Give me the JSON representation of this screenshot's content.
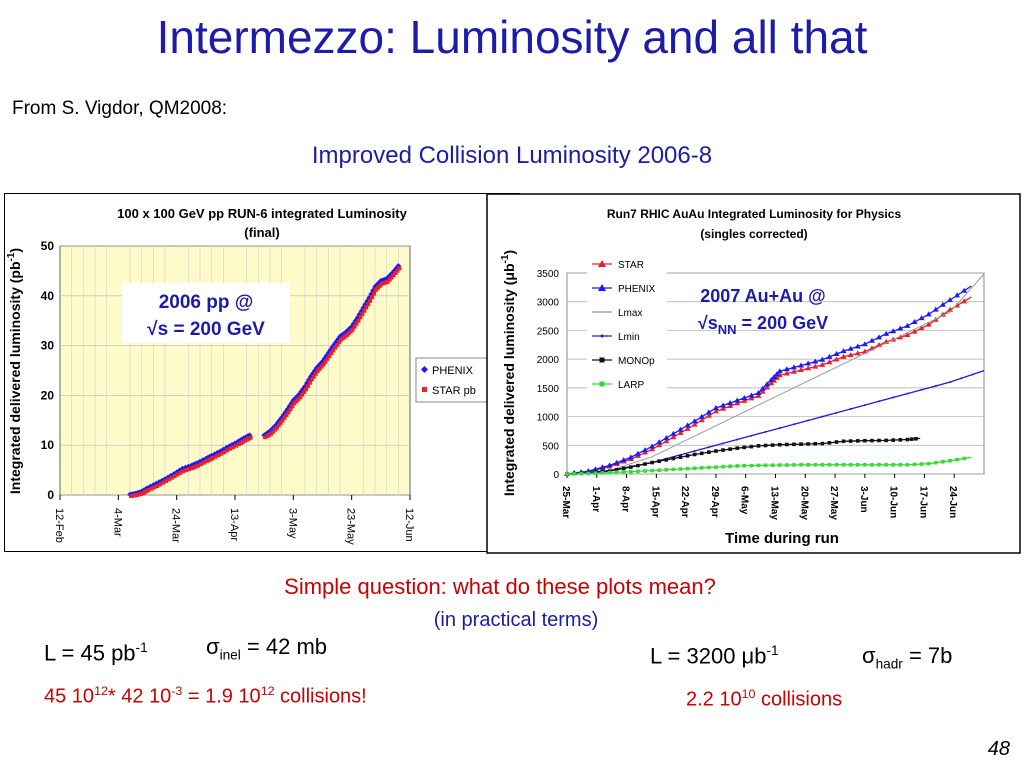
{
  "title": "Intermezzo: Luminosity and all that",
  "source": "From S. Vigdor, QM2008:",
  "subtitle": "Improved Collision Luminosity 2006-8",
  "colors": {
    "blue": "#1c1ca8",
    "red": "#cc0000",
    "phenix": "#1a1aff",
    "star": "#e8212a",
    "plot_bg_left": "#fdfbca"
  },
  "left_annotation": {
    "line1": "2006 pp @",
    "line2": "√s = 200 GeV"
  },
  "right_annotation": {
    "line1": "2007 Au+Au @",
    "line2_prefix": "√s",
    "line2_sub": "NN",
    "line2_suffix": " = 200 GeV"
  },
  "question": "Simple question: what do these plots mean?",
  "question_sub": "(in practical terms)",
  "left_formula": {
    "l": "L = 45 pb",
    "l_sup": "-1",
    "sigma": "σ",
    "sigma_sub": "inel",
    "sigma_val": " = 42 mb",
    "calc": [
      {
        "t": "45 10",
        "s": "12"
      },
      {
        "t": "* 42 10",
        "s": "-3"
      },
      {
        "t": " = 1.9 10",
        "s": "12"
      },
      {
        "t": " collisions!",
        "s": ""
      }
    ]
  },
  "right_formula": {
    "l_prefix": "L = 3200 ",
    "mu": "μ",
    "l_b": "b",
    "l_sup": "-1",
    "sigma": "σ",
    "sigma_sub": "hadr",
    "sigma_val": " = 7b",
    "calc_a": "2.2 10",
    "calc_sup": "10",
    "calc_b": " collisions"
  },
  "page_number": "48",
  "chart_data": [
    {
      "type": "scatter",
      "title": "100 x 100 GeV pp RUN-6 integrated  Luminosity",
      "title2": "(final)",
      "ylabel": "Integrated delivered luminosity (pb",
      "ylabel_sup": "-1",
      "ylabel_end": ")",
      "ylim": [
        0,
        50
      ],
      "yticks": [
        0,
        10,
        20,
        30,
        40,
        50
      ],
      "xticks": [
        "12-Feb",
        "4-Mar",
        "24-Mar",
        "13-Apr",
        "3-May",
        "23-May",
        "12-Jun"
      ],
      "x_unit": "days since 12-Feb",
      "xlim": [
        0,
        120
      ],
      "grid": true,
      "legend": "right",
      "series": [
        {
          "name": "PHENIX",
          "segments": [
            [
              [
                24,
                0.1
              ],
              [
                26,
                0.3
              ],
              [
                28,
                0.7
              ],
              [
                30,
                1.4
              ],
              [
                33,
                2.3
              ],
              [
                36,
                3.2
              ],
              [
                39,
                4.2
              ],
              [
                42,
                5.3
              ],
              [
                45,
                5.9
              ],
              [
                47,
                6.4
              ],
              [
                50,
                7.3
              ],
              [
                52,
                7.9
              ],
              [
                55,
                8.8
              ],
              [
                58,
                9.8
              ],
              [
                61,
                10.7
              ],
              [
                63,
                11.4
              ],
              [
                65,
                12.0
              ]
            ],
            [
              [
                70,
                12.0
              ],
              [
                72,
                12.8
              ],
              [
                74,
                14.0
              ],
              [
                76,
                15.5
              ],
              [
                78,
                17.2
              ],
              [
                80,
                19.0
              ],
              [
                82,
                20.2
              ],
              [
                84,
                21.8
              ],
              [
                86,
                23.8
              ],
              [
                88,
                25.5
              ],
              [
                90,
                26.8
              ],
              [
                92,
                28.5
              ],
              [
                94,
                30.2
              ],
              [
                96,
                31.8
              ],
              [
                98,
                32.7
              ],
              [
                100,
                33.8
              ],
              [
                102,
                35.6
              ],
              [
                104,
                37.6
              ],
              [
                106,
                39.6
              ],
              [
                108,
                41.8
              ],
              [
                110,
                43.0
              ],
              [
                112,
                43.4
              ],
              [
                114,
                44.6
              ],
              [
                116,
                46.0
              ]
            ]
          ]
        },
        {
          "name": "STAR pb",
          "segments": [
            [
              [
                24,
                0.0
              ],
              [
                26,
                0.2
              ],
              [
                28,
                0.5
              ],
              [
                30,
                1.2
              ],
              [
                33,
                2.0
              ],
              [
                36,
                3.0
              ],
              [
                39,
                4.0
              ],
              [
                42,
                5.0
              ],
              [
                45,
                5.6
              ],
              [
                47,
                6.1
              ],
              [
                50,
                7.0
              ],
              [
                52,
                7.6
              ],
              [
                55,
                8.5
              ],
              [
                58,
                9.5
              ],
              [
                61,
                10.4
              ],
              [
                63,
                11.1
              ],
              [
                65,
                11.7
              ]
            ],
            [
              [
                70,
                11.8
              ],
              [
                72,
                12.5
              ],
              [
                74,
                13.7
              ],
              [
                76,
                15.2
              ],
              [
                78,
                16.8
              ],
              [
                80,
                18.6
              ],
              [
                82,
                19.8
              ],
              [
                84,
                21.4
              ],
              [
                86,
                23.4
              ],
              [
                88,
                25.1
              ],
              [
                90,
                26.4
              ],
              [
                92,
                28.1
              ],
              [
                94,
                29.8
              ],
              [
                96,
                31.4
              ],
              [
                98,
                32.3
              ],
              [
                100,
                33.4
              ],
              [
                102,
                35.2
              ],
              [
                104,
                37.2
              ],
              [
                106,
                39.2
              ],
              [
                108,
                41.4
              ],
              [
                110,
                42.6
              ],
              [
                112,
                43.0
              ],
              [
                114,
                44.3
              ],
              [
                116,
                45.7
              ]
            ]
          ]
        }
      ]
    },
    {
      "type": "line",
      "title": "Run7 RHIC AuAu   Integrated Luminosity for Physics",
      "title2": "(singles corrected)",
      "ylabel": "Integrated delivered luminosity (",
      "ylabel_mu": "μ",
      "ylabel_b": "b",
      "ylabel_sup": "-1",
      "ylabel_end": ")",
      "xlabel": "Time during run",
      "ylim": [
        0,
        3500
      ],
      "yticks": [
        0,
        500,
        1000,
        1500,
        2000,
        2500,
        3000,
        3500
      ],
      "xticks": [
        "25-Mar",
        "1-Apr",
        "8-Apr",
        "15-Apr",
        "22-Apr",
        "29-Apr",
        "6-May",
        "13-May",
        "20-May",
        "27-May",
        "3-Jun",
        "10-Jun",
        "17-Jun",
        "24-Jun"
      ],
      "x_unit": "days since 25-Mar",
      "xlim": [
        0,
        98
      ],
      "grid": true,
      "legend": "top-left",
      "series": [
        {
          "name": "STAR",
          "color": "#e8212a",
          "marker": "triangle",
          "x": [
            0,
            5,
            10,
            15,
            20,
            25,
            30,
            35,
            40,
            45,
            48,
            50,
            55,
            60,
            65,
            70,
            75,
            80,
            85,
            90,
            95
          ],
          "y": [
            0,
            40,
            130,
            260,
            430,
            640,
            860,
            1090,
            1230,
            1360,
            1580,
            1720,
            1810,
            1900,
            2040,
            2130,
            2300,
            2420,
            2600,
            2860,
            3080
          ]
        },
        {
          "name": "PHENIX",
          "color": "#1a1aff",
          "marker": "triangle",
          "x": [
            0,
            5,
            10,
            15,
            20,
            25,
            30,
            35,
            40,
            45,
            48,
            50,
            55,
            60,
            65,
            70,
            75,
            80,
            85,
            90,
            95
          ],
          "y": [
            0,
            50,
            150,
            290,
            480,
            700,
            920,
            1150,
            1280,
            1410,
            1640,
            1790,
            1890,
            1990,
            2140,
            2260,
            2440,
            2580,
            2780,
            3030,
            3270
          ]
        },
        {
          "name": "Lmax",
          "color": "#999999",
          "marker": "line",
          "x": [
            0,
            10,
            20,
            30,
            40,
            50,
            60,
            70,
            80,
            90,
            98
          ],
          "y": [
            0,
            60,
            300,
            660,
            1020,
            1380,
            1740,
            2100,
            2460,
            2820,
            3480
          ]
        },
        {
          "name": "Lmin",
          "color": "#1c1cd0",
          "marker": "dot",
          "x": [
            0,
            10,
            20,
            30,
            40,
            50,
            60,
            70,
            80,
            90,
            98
          ],
          "y": [
            0,
            60,
            200,
            400,
            600,
            800,
            1000,
            1200,
            1400,
            1600,
            1800
          ]
        },
        {
          "name": "MONOp",
          "color": "#111111",
          "marker": "square",
          "x": [
            0,
            5,
            10,
            15,
            20,
            25,
            30,
            35,
            40,
            45,
            50,
            55,
            60,
            65,
            70,
            75,
            80,
            83
          ],
          "y": [
            0,
            20,
            50,
            120,
            200,
            270,
            340,
            400,
            450,
            490,
            510,
            520,
            530,
            570,
            580,
            585,
            600,
            620
          ]
        },
        {
          "name": "LARP",
          "color": "#33dd33",
          "marker": "square",
          "x": [
            0,
            5,
            10,
            15,
            20,
            25,
            30,
            35,
            40,
            45,
            50,
            55,
            60,
            65,
            70,
            75,
            80,
            85,
            90,
            95
          ],
          "y": [
            0,
            10,
            25,
            40,
            60,
            80,
            100,
            120,
            140,
            150,
            155,
            160,
            160,
            160,
            160,
            160,
            160,
            180,
            230,
            290
          ]
        }
      ]
    }
  ]
}
